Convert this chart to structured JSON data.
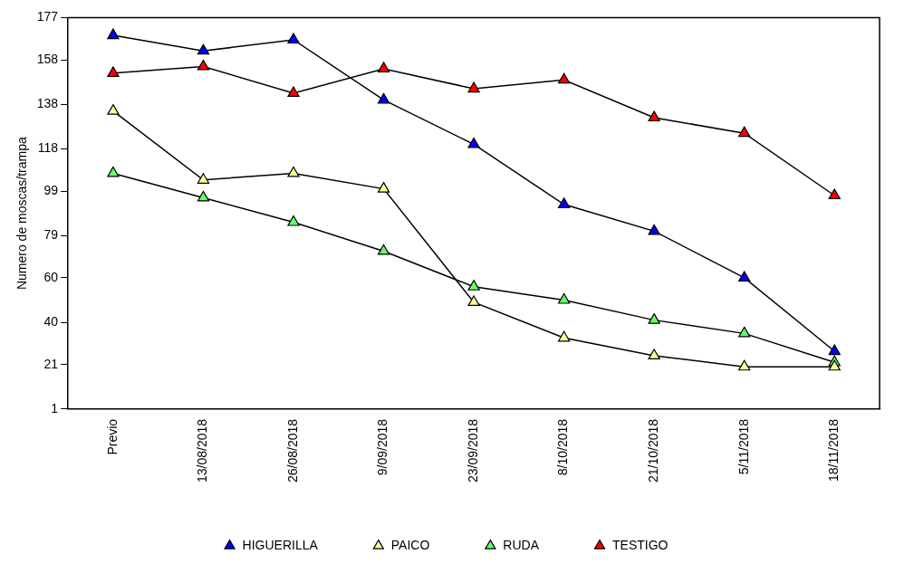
{
  "chart_data": {
    "type": "line",
    "ylabel": "Numero de moscas/trampa",
    "categories": [
      "Previo",
      "13/08/2018",
      "26/08/2018",
      "9/09/2018",
      "23/09/2018",
      "8/10/2018",
      "21/10/2018",
      "5/11/2018",
      "18/11/2018"
    ],
    "series": [
      {
        "name": "HIGUERILLA",
        "color": "#0000ff",
        "values": [
          169,
          162,
          167,
          140,
          120,
          93,
          81,
          60,
          27
        ]
      },
      {
        "name": "PAICO",
        "color": "#ffff99",
        "values": [
          135,
          104,
          107,
          100,
          49,
          33,
          25,
          20,
          20
        ]
      },
      {
        "name": "RUDA",
        "color": "#66ff66",
        "values": [
          107,
          96,
          85,
          72,
          56,
          50,
          41,
          35,
          22
        ]
      },
      {
        "name": "TESTIGO",
        "color": "#ff0000",
        "values": [
          152,
          155,
          143,
          154,
          145,
          149,
          132,
          125,
          97
        ]
      }
    ],
    "ylim": [
      1,
      177
    ],
    "yticks": [
      1,
      21,
      40,
      60,
      79,
      99,
      118,
      138,
      158,
      177
    ],
    "grid": false,
    "legend": "bottom",
    "marker": "triangle",
    "line_style": "solid"
  }
}
